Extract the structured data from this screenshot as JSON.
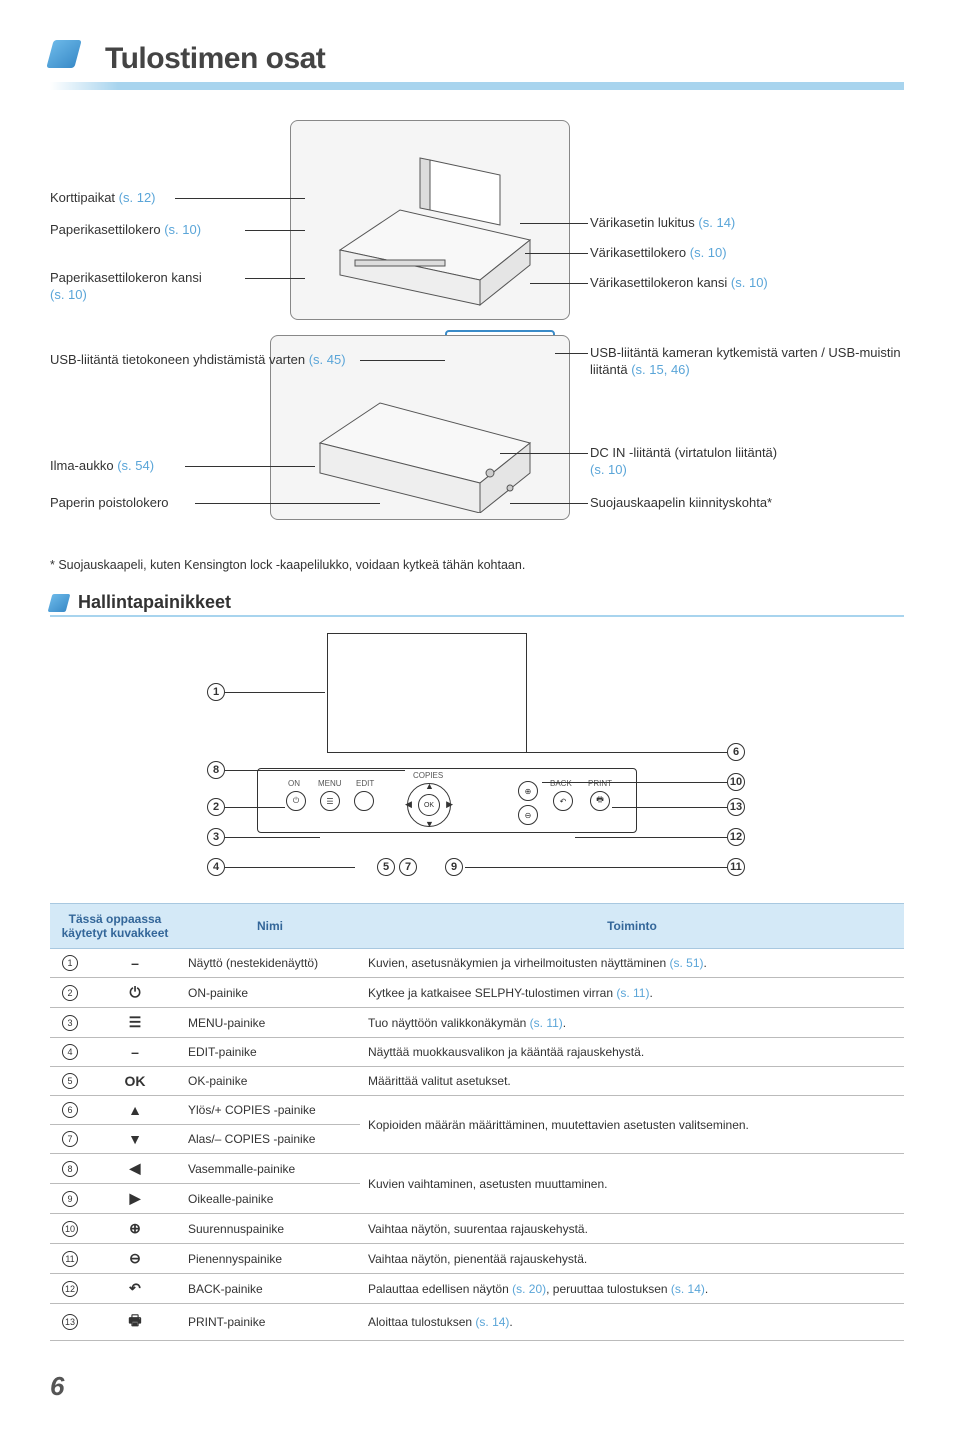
{
  "title": "Tulostimen osat",
  "callouts_left_top": [
    {
      "text": "Korttipaikat",
      "ref": "(s. 12)"
    },
    {
      "text": "Paperikasettilokero",
      "ref": "(s. 10)"
    },
    {
      "text": "Paperikasettilokeron kansi",
      "ref": "(s. 10)"
    }
  ],
  "callouts_right_top": [
    {
      "text": "Värikasetin lukitus",
      "ref": "(s. 14)"
    },
    {
      "text": "Värikasettilokero",
      "ref": "(s. 10)"
    },
    {
      "text": "Värikasettilokeron kansi",
      "ref": "(s. 10)"
    }
  ],
  "callouts_left_bottom": [
    {
      "text": "USB-liitäntä tietokoneen yhdistämistä varten",
      "ref": "(s. 45)"
    },
    {
      "text": "Ilma-aukko",
      "ref": "(s. 54)"
    },
    {
      "text": "Paperin poistolokero",
      "ref": ""
    }
  ],
  "callouts_right_bottom": [
    {
      "text": "USB-liitäntä kameran kytkemistä varten / USB-muistin liitäntä",
      "ref": "(s. 15, 46)"
    },
    {
      "text": "DC IN -liitäntä (virtatulon liitäntä)",
      "ref": "(s. 10)"
    },
    {
      "text": "Suojauskaapelin kiinnityskohta*",
      "ref": ""
    }
  ],
  "footnote": "* Suojauskaapeli, kuten Kensington lock -kaapelilukko, voidaan kytkeä tähän kohtaan.",
  "section2_title": "Hallintapainikkeet",
  "panel_labels": {
    "on": "ON",
    "menu": "MENU",
    "edit": "EDIT",
    "copies": "COPIES",
    "back": "BACK",
    "print": "PRINT",
    "ok": "OK"
  },
  "table_headers": [
    "Tässä oppaassa käytetyt kuvakkeet",
    "Nimi",
    "Toiminto"
  ],
  "table_rows": [
    {
      "num": 1,
      "icon": "–",
      "name": "Näyttö (nestekidenäyttö)",
      "func": "Kuvien, asetusnäkymien ja virheilmoitusten näyttäminen",
      "func_ref": "(s. 51)",
      "func_suffix": "."
    },
    {
      "num": 2,
      "icon": "⏻",
      "name": "ON-painike",
      "func": "Kytkee ja katkaisee SELPHY-tulostimen virran",
      "func_ref": "(s. 11)",
      "func_suffix": "."
    },
    {
      "num": 3,
      "icon": "☰",
      "name": "MENU-painike",
      "func": "Tuo näyttöön valikkonäkymän",
      "func_ref": "(s. 11)",
      "func_suffix": "."
    },
    {
      "num": 4,
      "icon": "–",
      "name": "EDIT-painike",
      "func": "Näyttää muokkausvalikon ja kääntää rajauskehystä.",
      "func_ref": "",
      "func_suffix": ""
    },
    {
      "num": 5,
      "icon": "OK",
      "name": "OK-painike",
      "func": "Määrittää valitut asetukset.",
      "func_ref": "",
      "func_suffix": ""
    },
    {
      "num": 6,
      "icon": "▲",
      "name": "Ylös/+ COPIES -painike",
      "func_group": "Kopioiden määrän määrittäminen, muutettavien asetusten valitseminen."
    },
    {
      "num": 7,
      "icon": "▼",
      "name": "Alas/– COPIES -painike"
    },
    {
      "num": 8,
      "icon": "◀",
      "name": "Vasemmalle-painike",
      "func_group": "Kuvien vaihtaminen, asetusten muuttaminen."
    },
    {
      "num": 9,
      "icon": "▶",
      "name": "Oikealle-painike"
    },
    {
      "num": 10,
      "icon": "⊕",
      "name": "Suurennuspainike",
      "func": "Vaihtaa näytön, suurentaa rajauskehystä.",
      "func_ref": "",
      "func_suffix": ""
    },
    {
      "num": 11,
      "icon": "⊖",
      "name": "Pienennyspainike",
      "func": "Vaihtaa näytön, pienentää rajauskehystä.",
      "func_ref": "",
      "func_suffix": ""
    },
    {
      "num": 12,
      "icon": "↶",
      "name": "BACK-painike",
      "func": "Palauttaa edellisen näytön",
      "func_ref": "(s. 20)",
      "func_mid": ", peruuttaa tulostuksen",
      "func_ref2": "(s. 14)",
      "func_suffix": "."
    },
    {
      "num": 13,
      "icon": "🖶",
      "name": "PRINT-painike",
      "func": "Aloittaa tulostuksen",
      "func_ref": "(s. 14)",
      "func_suffix": "."
    }
  ],
  "page_number": "6",
  "colors": {
    "accent": "#5aa5d8",
    "header_bg": "#d4e9f7",
    "header_text": "#336699",
    "border": "#bbb",
    "underline": "#a8d4ee"
  }
}
